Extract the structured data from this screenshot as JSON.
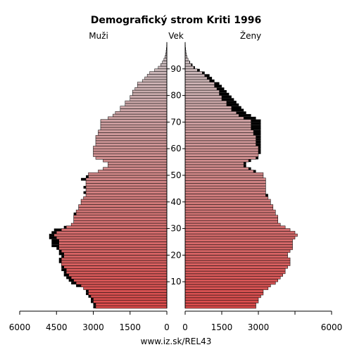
{
  "chart_data": {
    "type": "bar",
    "title": "Demografický strom Kriti 1996",
    "left_label": "Muži",
    "center_label": "Vek",
    "right_label": "Ženy",
    "source": "www.iz.sk/REL43",
    "age_ticks": [
      "10",
      "20",
      "30",
      "40",
      "50",
      "60",
      "70",
      "80",
      "90"
    ],
    "x_ticks_left": [
      "6000",
      "4500",
      "3000",
      "1500",
      "0"
    ],
    "x_ticks_right": [
      "0",
      "1500",
      "3000",
      "6000"
    ],
    "xlim": [
      0,
      6000
    ],
    "ages": [
      0,
      1,
      2,
      3,
      4,
      5,
      6,
      7,
      8,
      9,
      10,
      11,
      12,
      13,
      14,
      15,
      16,
      17,
      18,
      19,
      20,
      21,
      22,
      23,
      24,
      25,
      26,
      27,
      28,
      29,
      30,
      31,
      32,
      33,
      34,
      35,
      36,
      37,
      38,
      39,
      40,
      41,
      42,
      43,
      44,
      45,
      46,
      47,
      48,
      49,
      50,
      51,
      52,
      53,
      54,
      55,
      56,
      57,
      58,
      59,
      60,
      61,
      62,
      63,
      64,
      65,
      66,
      67,
      68,
      69,
      70,
      71,
      72,
      73,
      74,
      75,
      76,
      77,
      78,
      79,
      80,
      81,
      82,
      83,
      84,
      85,
      86,
      87,
      88,
      89,
      90,
      91,
      92,
      93,
      94,
      95,
      96,
      97,
      98,
      99
    ],
    "series": [
      {
        "name": "Muži",
        "values": [
          3000,
          3000,
          3100,
          3100,
          3200,
          3300,
          3300,
          3400,
          3700,
          3900,
          4000,
          4100,
          4200,
          4200,
          4300,
          4300,
          4300,
          4400,
          4400,
          4300,
          4400,
          4400,
          4500,
          4700,
          4700,
          4700,
          4800,
          4800,
          4700,
          4600,
          4200,
          3900,
          3800,
          3800,
          3800,
          3800,
          3700,
          3600,
          3600,
          3500,
          3500,
          3400,
          3300,
          3400,
          3300,
          3400,
          3300,
          3300,
          3500,
          3300,
          3200,
          2800,
          2600,
          2400,
          2400,
          2600,
          2900,
          3000,
          3000,
          3000,
          3000,
          2900,
          2900,
          2900,
          2900,
          2800,
          2800,
          2700,
          2700,
          2700,
          2700,
          2400,
          2200,
          2100,
          1900,
          1900,
          1700,
          1700,
          1500,
          1500,
          1400,
          1400,
          1300,
          1200,
          1200,
          1000,
          900,
          800,
          700,
          500,
          350,
          250,
          180,
          120,
          80,
          50,
          30,
          20,
          10,
          5
        ]
      },
      {
        "name": "Ženy",
        "values": [
          2900,
          2900,
          3000,
          3000,
          3100,
          3200,
          3200,
          3400,
          3500,
          3700,
          3800,
          3900,
          4000,
          4100,
          4100,
          4200,
          4300,
          4300,
          4300,
          4200,
          4200,
          4300,
          4400,
          4400,
          4400,
          4400,
          4500,
          4600,
          4500,
          4300,
          4100,
          3900,
          3800,
          3800,
          3800,
          3700,
          3700,
          3600,
          3600,
          3500,
          3500,
          3400,
          3400,
          3300,
          3300,
          3300,
          3300,
          3300,
          3300,
          3200,
          3200,
          2900,
          2700,
          2500,
          2500,
          2700,
          3000,
          3000,
          3100,
          3100,
          3100,
          3100,
          3100,
          3100,
          3100,
          3100,
          3100,
          3100,
          3100,
          3100,
          3100,
          2900,
          2700,
          2500,
          2400,
          2300,
          2200,
          2100,
          2000,
          1900,
          1800,
          1700,
          1600,
          1500,
          1400,
          1200,
          1100,
          1000,
          800,
          600,
          400,
          300,
          200,
          120,
          80,
          50,
          30,
          20,
          10,
          5
        ]
      }
    ],
    "surplus_color": "#000000"
  }
}
